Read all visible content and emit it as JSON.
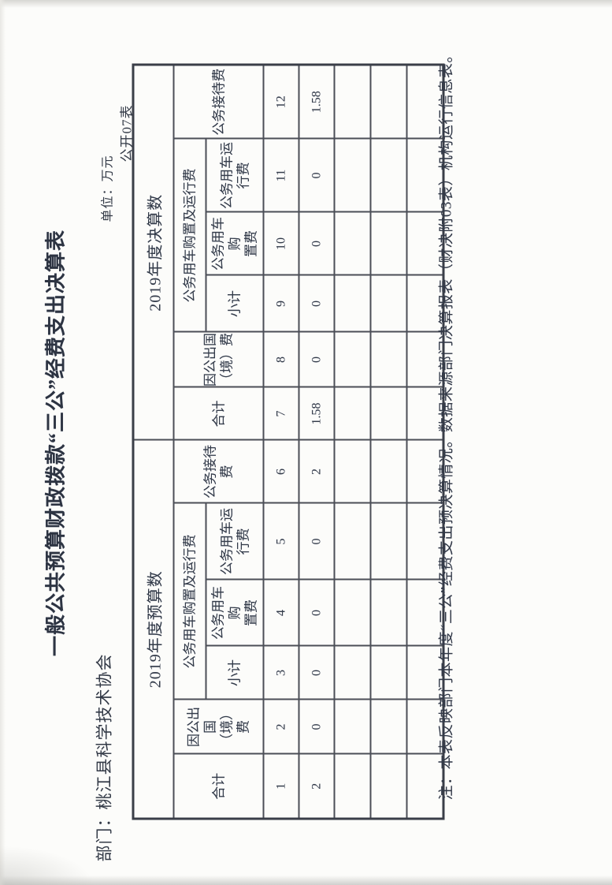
{
  "page": {
    "title": "一般公共预算财政拨款“三公”经费支出决算表",
    "form_code": "公开07表",
    "department_label": "部门：桃江县科学技术协会",
    "unit_label": "单位：万元",
    "note": "注：本表反映部门本年度“三公”经费支出预决算情况。数据来源部门决算报表（财决附03表）机构运行信息表。"
  },
  "table": {
    "groups": [
      {
        "label": "2019年度预算数",
        "span": 6
      },
      {
        "label": "2019年度决算数",
        "span": 6
      }
    ],
    "vehicle_group_label": "公务用车购置及运行费",
    "columns": [
      "合计",
      "因公出国\n（境）费",
      "小计",
      "公务用车购\n置费",
      "公务用车运\n行费",
      "公务接待费",
      "合计",
      "因公出国\n（境）费",
      "小计",
      "公务用车购\n置费",
      "公务用车运\n行费",
      "公务接待费"
    ],
    "column_numbers": [
      "1",
      "2",
      "3",
      "4",
      "5",
      "6",
      "7",
      "8",
      "9",
      "10",
      "11",
      "12"
    ],
    "values": [
      "2",
      "0",
      "0",
      "0",
      "0",
      "2",
      "1.58",
      "0",
      "0",
      "0",
      "0",
      "1.58"
    ],
    "empty_row_count": 3
  }
}
